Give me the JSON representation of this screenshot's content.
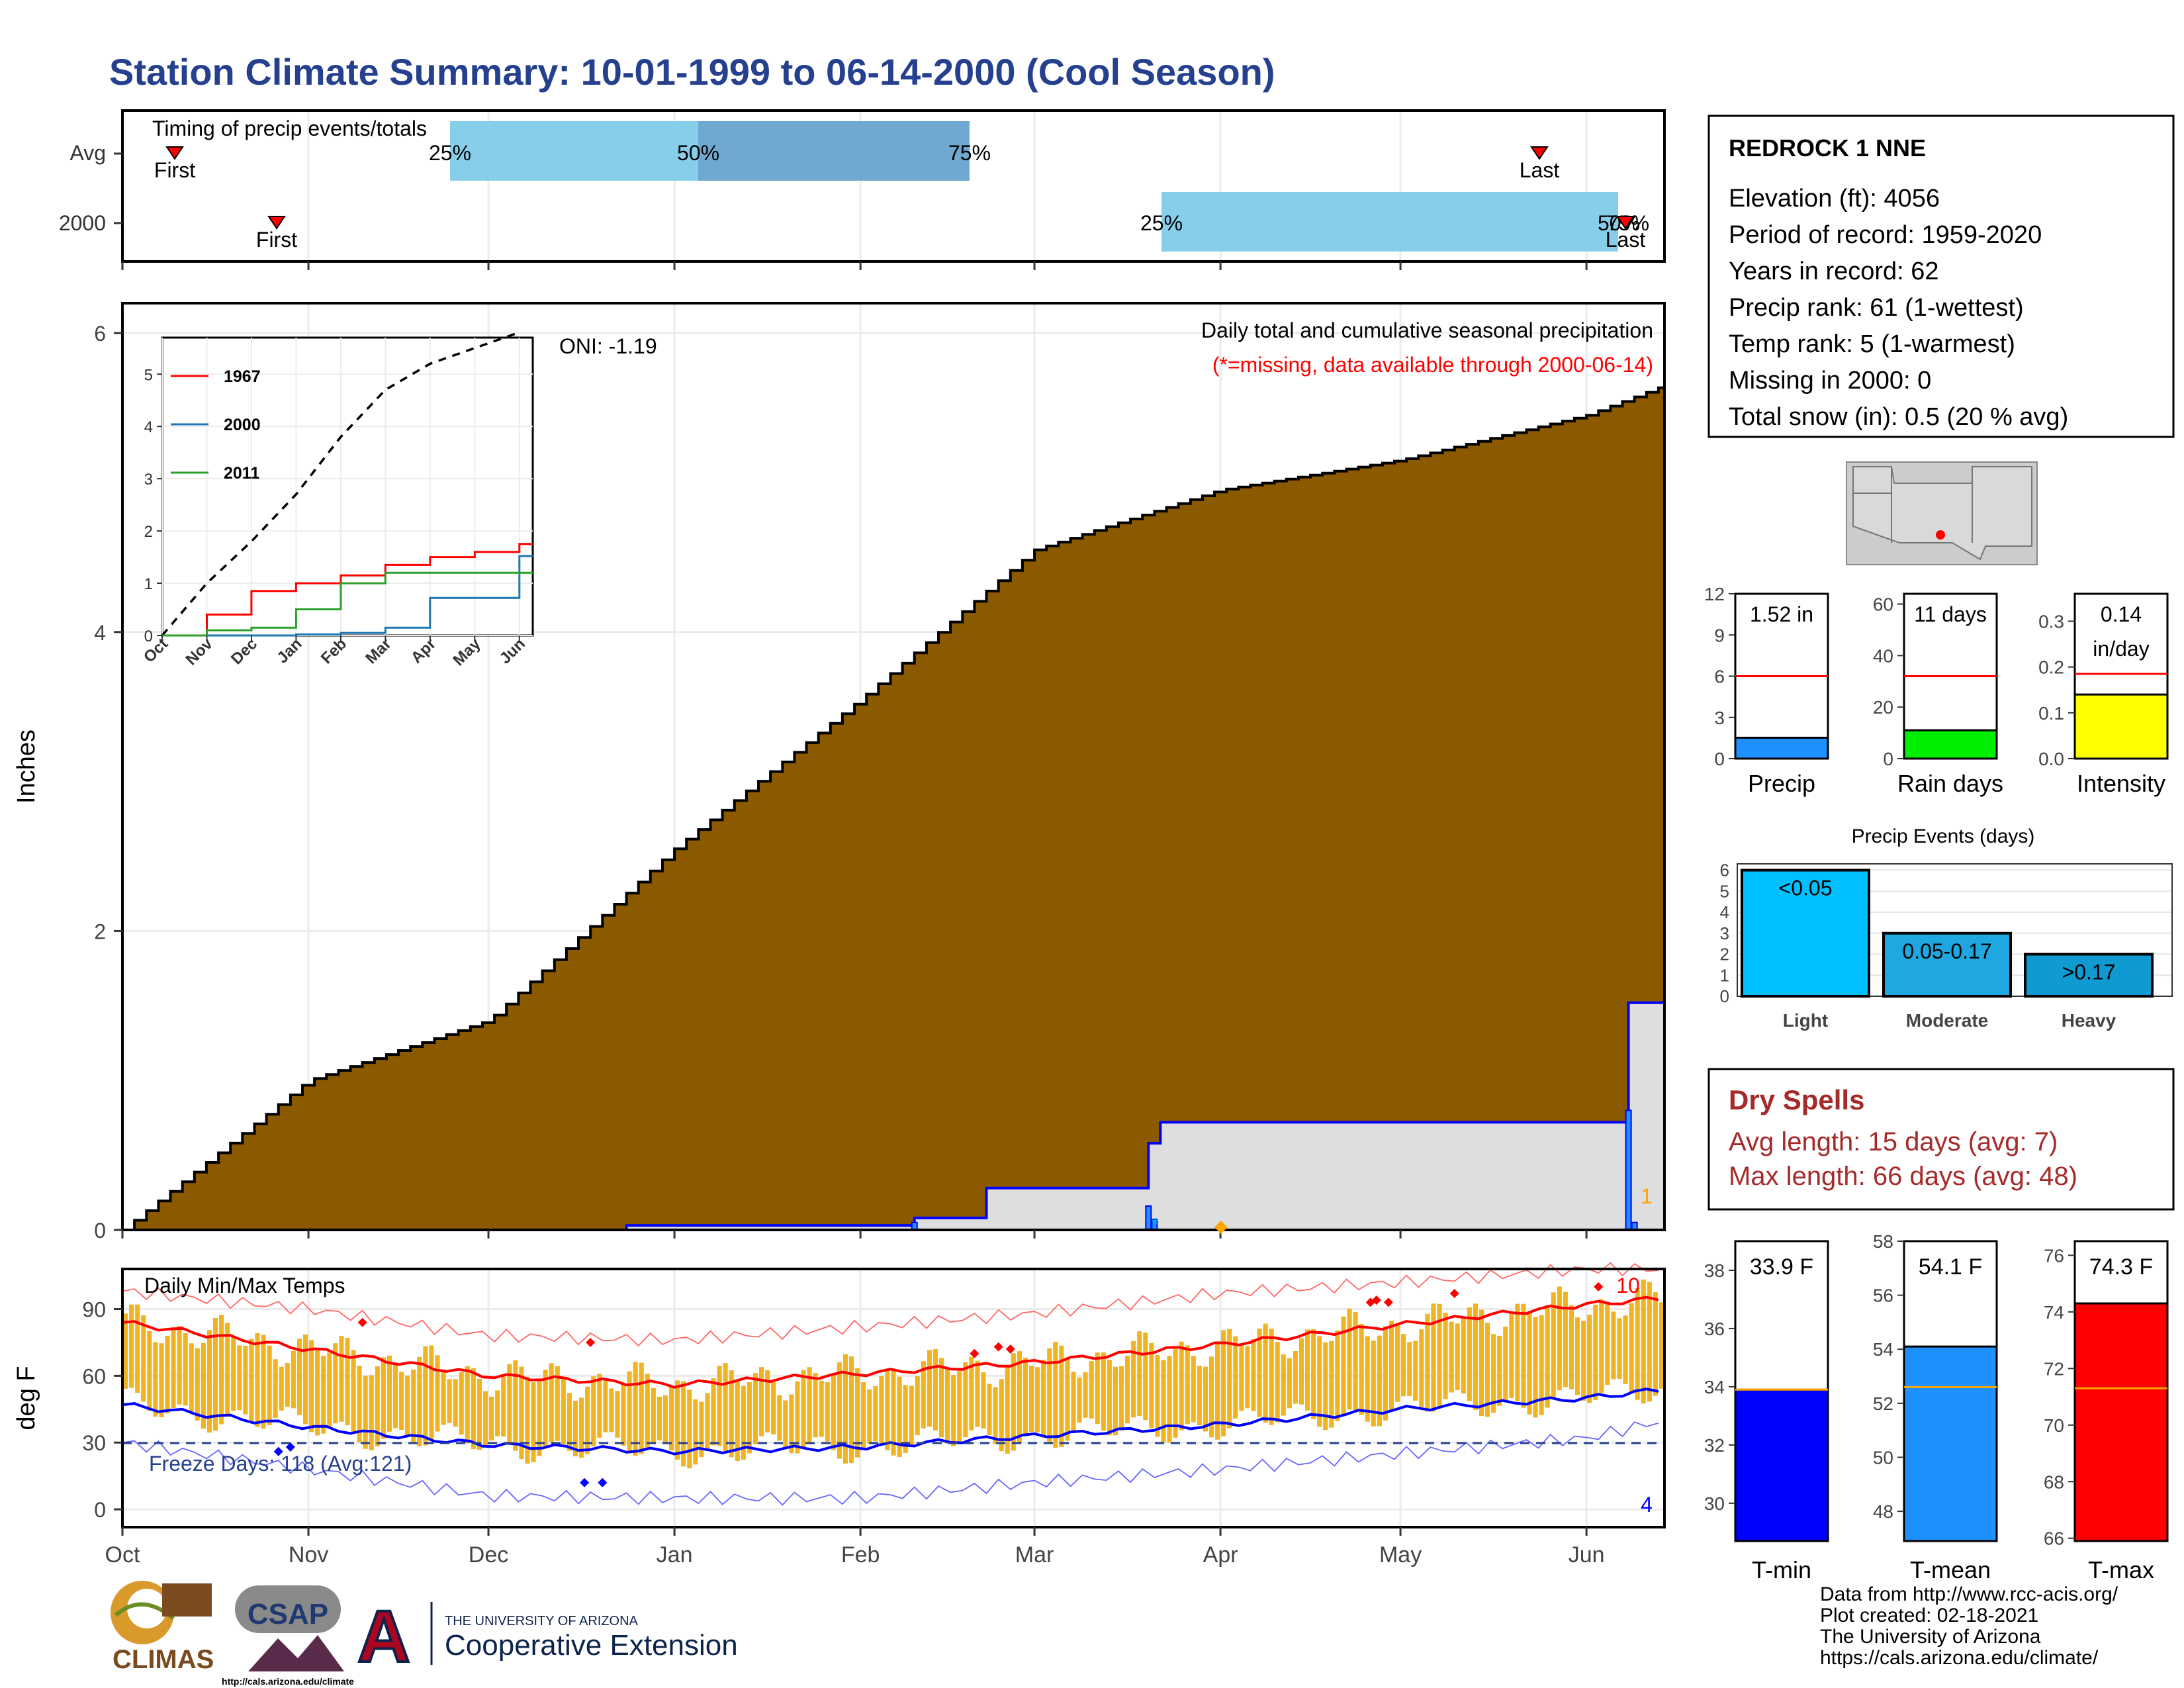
{
  "title": "Station Climate Summary: 10-01-1999 to 06-14-2000 (Cool Season)",
  "colors": {
    "title": "#24408e",
    "precip_fill": "#8b5a00",
    "gray_fill": "#dedede",
    "blue_line": "#0000ff",
    "avg_bar": "#87ceeb",
    "mid_bar": "#6fa8d0",
    "temp_bar": "#f0b323",
    "red": "#ff0000",
    "rain_green": "#00ee00",
    "intensity_yellow": "#ffff00",
    "precip_blue": "#1e90ff",
    "tmin_blue": "#0000ff",
    "tmean_blue": "#1e90ff",
    "tmax_red": "#ff0000",
    "light": "#00bfff",
    "moderate": "#1ea7e1",
    "heavy": "#0f9bd1",
    "dry": "#a52a2a",
    "orange": "#ffa500"
  },
  "timing": {
    "title": "Timing of precip events/totals",
    "rows": [
      "Avg",
      "2000"
    ],
    "avg": {
      "first": "First",
      "last": "Last",
      "p25": "25%",
      "p50": "50%",
      "p75": "75%"
    },
    "y2000": {
      "first": "First",
      "last": "Last",
      "p25": "25%",
      "p50": "50%",
      "p75": "75%"
    }
  },
  "precip": {
    "ylabel": "Inches",
    "ticks": [
      "0",
      "2",
      "4",
      "6"
    ],
    "months": [
      "Oct",
      "Nov",
      "Dec",
      "Jan",
      "Feb",
      "Mar",
      "Apr",
      "May",
      "Jun"
    ],
    "annotation_line1": "Daily total and cumulative seasonal precipitation",
    "annotation_line2": "(*=missing, data available through 2000-06-14)",
    "oni": "ONI: -1.19",
    "corner_count": "1"
  },
  "inset": {
    "yticks": [
      "0",
      "1",
      "2",
      "3",
      "4",
      "5"
    ],
    "months": [
      "Oct",
      "Nov",
      "Dec",
      "Jan",
      "Feb",
      "Mar",
      "Apr",
      "May",
      "Jun"
    ],
    "legend": [
      {
        "name": "1967",
        "color": "#ff0000"
      },
      {
        "name": "2000",
        "color": "#1f77b4"
      },
      {
        "name": "2011",
        "color": "#2ca02c"
      }
    ]
  },
  "temps": {
    "title": "Daily Min/Max Temps",
    "ylabel": "deg F",
    "ticks": [
      "0",
      "30",
      "60",
      "90"
    ],
    "months": [
      "Oct",
      "Nov",
      "Dec",
      "Jan",
      "Feb",
      "Mar",
      "Apr",
      "May",
      "Jun"
    ],
    "freeze": "Freeze Days: 118 (Avg:121)",
    "max_count": "10",
    "min_count": "4"
  },
  "station": {
    "name": "REDROCK 1 NNE",
    "lines": [
      "Elevation (ft): 4056",
      "Period of record: 1959-2020",
      "Years in record: 62",
      "Precip rank: 61 (1-wettest)",
      "Temp rank: 5 (1-warmest)",
      "Missing in 2000: 0",
      "Total snow (in): 0.5 (20 % avg)"
    ]
  },
  "small_bars": [
    {
      "label": "Precip",
      "value_text": "1.52 in",
      "ticks": [
        "0",
        "3",
        "6",
        "9",
        "12"
      ],
      "ymax": 12,
      "value": 1.52,
      "avg": 6.0,
      "color": "#1e90ff"
    },
    {
      "label": "Rain days",
      "value_text": "11 days",
      "ticks": [
        "0",
        "20",
        "40",
        "60"
      ],
      "ymax": 64,
      "value": 11,
      "avg": 32,
      "color": "#00ee00"
    },
    {
      "label": "Intensity",
      "value_text": "0.14",
      "value_text2": "in/day",
      "ticks": [
        "0.0",
        "0.1",
        "0.2",
        "0.3"
      ],
      "ymax": 0.36,
      "value": 0.14,
      "avg": 0.185,
      "color": "#ffff00"
    }
  ],
  "events": {
    "title": "Precip Events (days)",
    "ticks": [
      "0",
      "1",
      "2",
      "3",
      "4",
      "5",
      "6"
    ],
    "bars": [
      {
        "label": "Light",
        "value": 6,
        "text": "<0.05",
        "color": "#00bfff"
      },
      {
        "label": "Moderate",
        "value": 3,
        "text": "0.05-0.17",
        "color": "#1ea7e1"
      },
      {
        "label": "Heavy",
        "value": 2,
        "text": ">0.17",
        "color": "#0f9bd1"
      }
    ]
  },
  "dry": {
    "title": "Dry Spells",
    "line1": "Avg length: 15 days (avg: 7)",
    "line2": "Max length: 66 days (avg: 48)"
  },
  "temp_bars": [
    {
      "label": "T-min",
      "value_text": "33.9 F",
      "ticks": [
        "30",
        "32",
        "34",
        "36",
        "38"
      ],
      "ymin": 28.7,
      "ymax": 39.0,
      "value": 33.9,
      "avg": 33.9,
      "color": "#0000ff"
    },
    {
      "label": "T-mean",
      "value_text": "54.1 F",
      "ticks": [
        "48",
        "50",
        "52",
        "54",
        "56",
        "58"
      ],
      "ymin": 46.9,
      "ymax": 58.0,
      "value": 54.1,
      "avg": 52.6,
      "color": "#1e90ff"
    },
    {
      "label": "T-max",
      "value_text": "74.3 F",
      "ticks": [
        "66",
        "68",
        "70",
        "72",
        "74",
        "76"
      ],
      "ymin": 65.9,
      "ymax": 76.5,
      "value": 74.3,
      "avg": 71.3,
      "color": "#ff0000"
    }
  ],
  "footer": {
    "line1": "Data from http://www.rcc-acis.org/",
    "line2": "Plot created: 02-18-2021",
    "line3": "The University of Arizona",
    "line4": "https://cals.arizona.edu/climate/"
  },
  "logos": {
    "climas": "CLIMAS",
    "csap": "CSAP",
    "csap_url": "http://cals.arizona.edu/climate",
    "ua_small": "THE UNIVERSITY OF ARIZONA",
    "ua_big": "Cooperative Extension"
  },
  "chart_data": [
    {
      "type": "area",
      "title": "Daily total and cumulative seasonal precipitation",
      "ylabel": "Inches",
      "ylim": [
        0,
        6.2
      ],
      "x": [
        "Oct",
        "Nov",
        "Dec",
        "Jan",
        "Feb",
        "Mar",
        "Apr",
        "May",
        "Jun",
        "Jun 14"
      ],
      "series": [
        {
          "name": "Avg",
          "values": [
            0.0,
            1.0,
            1.4,
            2.55,
            3.55,
            4.55,
            4.95,
            5.15,
            5.45,
            5.65
          ]
        },
        {
          "name": "2000",
          "values": [
            0.0,
            0.0,
            0.0,
            0.03,
            0.08,
            0.28,
            0.72,
            0.72,
            0.72,
            1.52
          ]
        }
      ]
    },
    {
      "type": "line",
      "title": "Daily Min/Max Temps",
      "ylabel": "deg F",
      "ylim": [
        -8,
        108
      ],
      "x": [
        "Oct",
        "Nov",
        "Dec",
        "Jan",
        "Feb",
        "Mar",
        "Apr",
        "May",
        "Jun",
        "Jun 14"
      ],
      "series": [
        {
          "name": "Avg max",
          "values": [
            84,
            72,
            60,
            56,
            61,
            66,
            74,
            83,
            92,
            95
          ]
        },
        {
          "name": "Avg min",
          "values": [
            47,
            37,
            29,
            26,
            28,
            33,
            38,
            45,
            50,
            54
          ]
        },
        {
          "name": "Record max",
          "values": [
            98,
            90,
            78,
            76,
            82,
            88,
            97,
            102,
            108,
            108
          ]
        },
        {
          "name": "Record min",
          "values": [
            30,
            18,
            6,
            5,
            5,
            12,
            18,
            25,
            32,
            40
          ]
        }
      ]
    },
    {
      "type": "line",
      "x": [
        "Oct",
        "Nov",
        "Dec",
        "Jan",
        "Feb",
        "Mar",
        "Apr",
        "May",
        "Jun"
      ],
      "ylim": [
        0,
        6
      ],
      "series": [
        {
          "name": "",
          "values": [
            0.0,
            1.0,
            1.8,
            2.7,
            3.8,
            4.7,
            5.2,
            5.5,
            5.8
          ]
        },
        {
          "name": "1967",
          "values": [
            0.0,
            0.4,
            0.85,
            1.0,
            1.15,
            1.35,
            1.5,
            1.6,
            1.75
          ]
        },
        {
          "name": "2000",
          "values": [
            0.0,
            0.0,
            0.0,
            0.02,
            0.05,
            0.15,
            0.72,
            0.72,
            1.52
          ]
        },
        {
          "name": "2011",
          "values": [
            0.0,
            0.1,
            0.15,
            0.5,
            1.0,
            1.2,
            1.2,
            1.2,
            1.2
          ]
        }
      ]
    },
    {
      "type": "bar",
      "title": "Precip Events (days)",
      "categories": [
        "Light",
        "Moderate",
        "Heavy"
      ],
      "values": [
        6,
        3,
        2
      ],
      "ylim": [
        0,
        6.3
      ]
    },
    {
      "type": "bar",
      "categories": [
        "Precip",
        "Rain days",
        "Intensity"
      ],
      "series": [
        {
          "name": "",
          "values": [
            1.52,
            11,
            0.14
          ]
        },
        {
          "name": "",
          "values": [
            6.0,
            32,
            0.185
          ]
        }
      ]
    },
    {
      "type": "bar",
      "categories": [
        "T-min",
        "T-mean",
        "T-max"
      ],
      "series": [
        {
          "name": "",
          "values": [
            33.9,
            54.1,
            74.3
          ]
        },
        {
          "name": "",
          "values": [
            33.9,
            52.6,
            71.3
          ]
        }
      ]
    }
  ]
}
